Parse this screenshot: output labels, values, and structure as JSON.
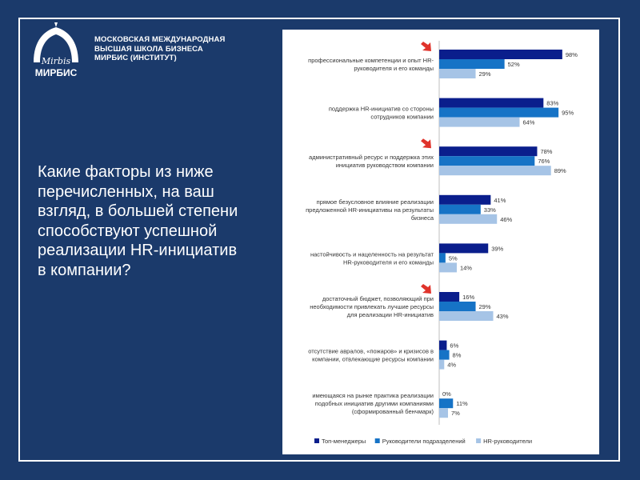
{
  "brand": {
    "logo_script": "Mirbis",
    "logo_text": "МИРБИС",
    "org_lines": [
      "МОСКОВСКАЯ МЕЖДУНАРОДНАЯ",
      "ВЫСШАЯ ШКОЛА БИЗНЕСА",
      "МИРБИС (ИНСТИТУТ)"
    ]
  },
  "question_lines": [
    "Какие факторы из ниже",
    "перечисленных, на ваш",
    "взгляд, в большей степени",
    "способствуют успешной",
    "реализации HR-инициатив",
    "в компании?"
  ],
  "colors": {
    "background": "#1b3a6b",
    "arrow": "#e0332b",
    "series": [
      "#0a1e8c",
      "#1673c6",
      "#a6c4e6"
    ]
  },
  "chart_data": {
    "type": "bar",
    "orientation": "horizontal",
    "unit": "%",
    "xlim": [
      0,
      100
    ],
    "grid": false,
    "legend_position": "bottom",
    "categories": [
      [
        "профессиональные компетенции и опыт HR-",
        "руководителя и его команды"
      ],
      [
        "поддержка HR-инициатив со стороны",
        "сотрудников компании"
      ],
      [
        "административный ресурс и поддержка этих",
        "инициатив руководством компании"
      ],
      [
        "прямое безусловное влияние реализации",
        "предложенной HR-инициативы на результаты",
        "бизнеса"
      ],
      [
        "настойчивость и нацеленность на результат",
        "HR-руководителя и его команды"
      ],
      [
        "достаточный бюджет, позволяющий при",
        "необходимости привлекать лучшие ресурсы",
        "для реализации HR-инициатив"
      ],
      [
        "отсутствие авралов, «пожаров» и кризисов в",
        "компании, отвлекающие ресурсы компании"
      ],
      [
        "имеющаяся на рынке практика реализации",
        "подобных инициатив другими компаниями",
        "(сформированный бенчмарк)"
      ]
    ],
    "highlighted": [
      0,
      2,
      5
    ],
    "series": [
      {
        "name": "Топ-менеджеры",
        "values": [
          98,
          83,
          78,
          41,
          39,
          16,
          6,
          0
        ]
      },
      {
        "name": "Руководители подразделений",
        "values": [
          52,
          95,
          76,
          33,
          5,
          29,
          8,
          11
        ]
      },
      {
        "name": "HR-руководители",
        "values": [
          29,
          64,
          89,
          46,
          14,
          43,
          4,
          7
        ]
      }
    ]
  }
}
